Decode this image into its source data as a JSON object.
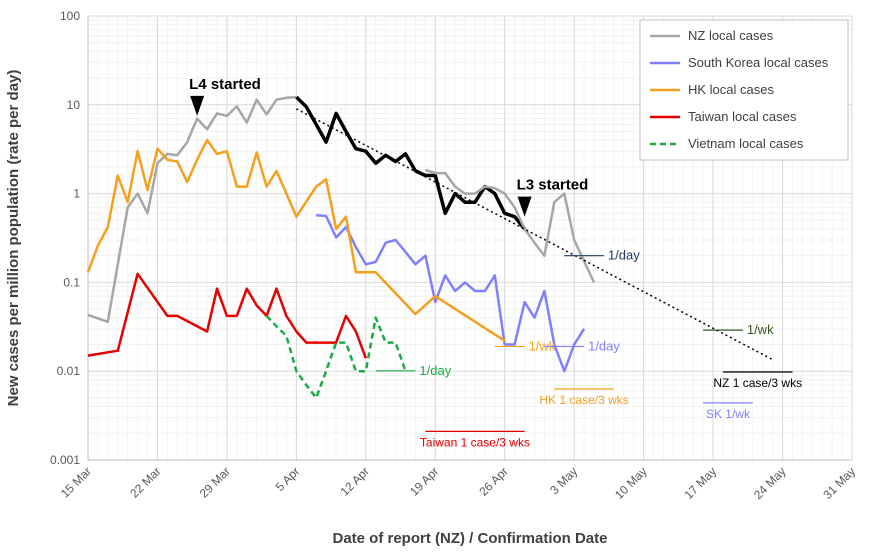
{
  "chart_data": {
    "type": "line",
    "xlabel": "Date of report (NZ) / Confirmation Date",
    "ylabel": "New cases per million population (rate per day)",
    "y_scale": "log",
    "ylim": [
      0.001,
      100
    ],
    "y_ticks": [
      "0.001",
      "0.01",
      "0.1",
      "1",
      "10",
      "100"
    ],
    "xlim": [
      "2020-03-15",
      "2020-05-31"
    ],
    "x_ticks": [
      "15 Mar",
      "22 Mar",
      "29 Mar",
      "5 Apr",
      "12 Apr",
      "19 Apr",
      "26 Apr",
      "3 May",
      "10 May",
      "17 May",
      "24 May",
      "31 May"
    ],
    "grid": true,
    "legend_position": "top-right",
    "series": [
      {
        "name": "NZ local cases",
        "color": "#a6a6a6",
        "style": "solid",
        "x": [
          "2020-03-15",
          "2020-03-17",
          "2020-03-19",
          "2020-03-20",
          "2020-03-21",
          "2020-03-22",
          "2020-03-23",
          "2020-03-24",
          "2020-03-25",
          "2020-03-26",
          "2020-03-27",
          "2020-03-28",
          "2020-03-29",
          "2020-03-30",
          "2020-03-31",
          "2020-04-01",
          "2020-04-02",
          "2020-04-03",
          "2020-04-04",
          "2020-04-05"
        ],
        "y": [
          0.043,
          0.036,
          0.7,
          1.0,
          0.6,
          2.2,
          2.8,
          2.7,
          3.8,
          7.0,
          5.3,
          8.0,
          7.5,
          9.6,
          6.3,
          11.4,
          7.8,
          11.4,
          12.0,
          12.2
        ]
      },
      {
        "name": "NZ local cases (black)",
        "color": "#000000",
        "style": "solid",
        "x": [
          "2020-04-05",
          "2020-04-06",
          "2020-04-07",
          "2020-04-08",
          "2020-04-09",
          "2020-04-10",
          "2020-04-11",
          "2020-04-12",
          "2020-04-13",
          "2020-04-14",
          "2020-04-15",
          "2020-04-16",
          "2020-04-17",
          "2020-04-18",
          "2020-04-19",
          "2020-04-20",
          "2020-04-21",
          "2020-04-22",
          "2020-04-23",
          "2020-04-24",
          "2020-04-25",
          "2020-04-26",
          "2020-04-27",
          "2020-04-28"
        ],
        "y": [
          12.2,
          9.5,
          6.0,
          3.8,
          8.0,
          5.0,
          3.2,
          3.0,
          2.2,
          2.7,
          2.3,
          2.8,
          1.8,
          1.6,
          1.6,
          0.6,
          1.0,
          0.8,
          0.8,
          1.2,
          1.0,
          0.6,
          0.55,
          0.4
        ]
      },
      {
        "name": "NZ local cases (grey tail)",
        "color": "#a6a6a6",
        "style": "solid",
        "x": [
          "2020-04-18",
          "2020-04-19",
          "2020-04-20",
          "2020-04-21",
          "2020-04-22",
          "2020-04-23",
          "2020-04-24",
          "2020-04-25",
          "2020-04-26",
          "2020-04-27",
          "2020-04-28",
          "2020-04-29",
          "2020-04-30",
          "2020-05-01",
          "2020-05-02",
          "2020-05-03",
          "2020-05-05"
        ],
        "y": [
          1.85,
          1.7,
          1.7,
          1.2,
          1.0,
          1.0,
          1.2,
          1.15,
          1.0,
          0.7,
          0.4,
          0.28,
          0.2,
          0.8,
          1.0,
          0.3,
          0.1
        ]
      },
      {
        "name": "South Korea local cases",
        "color": "#8080ff",
        "style": "solid",
        "x": [
          "2020-04-07",
          "2020-04-08",
          "2020-04-09",
          "2020-04-10",
          "2020-04-11",
          "2020-04-12",
          "2020-04-13",
          "2020-04-14",
          "2020-04-15",
          "2020-04-16",
          "2020-04-17",
          "2020-04-18",
          "2020-04-19",
          "2020-04-20",
          "2020-04-21",
          "2020-04-22",
          "2020-04-23",
          "2020-04-24",
          "2020-04-25",
          "2020-04-26",
          "2020-04-27",
          "2020-04-28",
          "2020-04-29",
          "2020-04-30",
          "2020-05-01",
          "2020-05-02",
          "2020-05-03",
          "2020-05-04"
        ],
        "y": [
          0.57,
          0.56,
          0.32,
          0.42,
          0.25,
          0.16,
          0.17,
          0.28,
          0.3,
          0.22,
          0.16,
          0.2,
          0.06,
          0.12,
          0.08,
          0.1,
          0.08,
          0.08,
          0.12,
          0.02,
          0.02,
          0.06,
          0.04,
          0.08,
          0.02,
          0.01,
          0.02,
          0.03
        ]
      },
      {
        "name": "HK local cases",
        "color": "#f59f1e",
        "style": "solid",
        "x": [
          "2020-03-15",
          "2020-03-16",
          "2020-03-17",
          "2020-03-18",
          "2020-03-19",
          "2020-03-20",
          "2020-03-21",
          "2020-03-22",
          "2020-03-23",
          "2020-03-24",
          "2020-03-25",
          "2020-03-26",
          "2020-03-27",
          "2020-03-28",
          "2020-03-29",
          "2020-03-30",
          "2020-03-31",
          "2020-04-01",
          "2020-04-02",
          "2020-04-03",
          "2020-04-04",
          "2020-04-05",
          "2020-04-07",
          "2020-04-08",
          "2020-04-09",
          "2020-04-10",
          "2020-04-11",
          "2020-04-12",
          "2020-04-13",
          "2020-04-17",
          "2020-04-19",
          "2020-04-26"
        ],
        "y": [
          0.13,
          0.26,
          0.42,
          1.6,
          0.8,
          3.0,
          1.1,
          3.2,
          2.4,
          2.3,
          1.35,
          2.4,
          4.0,
          2.8,
          3.0,
          1.2,
          1.2,
          2.9,
          1.2,
          1.8,
          1.0,
          0.55,
          1.2,
          1.45,
          0.4,
          0.55,
          0.13,
          0.13,
          0.13,
          0.044,
          0.07,
          0.022
        ]
      },
      {
        "name": "Taiwan local cases",
        "color": "#e60000",
        "style": "solid",
        "x": [
          "2020-03-15",
          "2020-03-18",
          "2020-03-20",
          "2020-03-23",
          "2020-03-24",
          "2020-03-27",
          "2020-03-28",
          "2020-03-29",
          "2020-03-30",
          "2020-03-31",
          "2020-04-01",
          "2020-04-02",
          "2020-04-03",
          "2020-04-04",
          "2020-04-05",
          "2020-04-06",
          "2020-04-07",
          "2020-04-09",
          "2020-04-10",
          "2020-04-11",
          "2020-04-12"
        ],
        "y": [
          0.015,
          0.017,
          0.125,
          0.042,
          0.042,
          0.028,
          0.085,
          0.042,
          0.042,
          0.085,
          0.055,
          0.042,
          0.085,
          0.042,
          0.028,
          0.021,
          0.021,
          0.021,
          0.042,
          0.028,
          0.014
        ]
      },
      {
        "name": "Vietnam local cases",
        "color": "#1aab45",
        "style": "dashed",
        "x": [
          "2020-04-02",
          "2020-04-03",
          "2020-04-04",
          "2020-04-05",
          "2020-04-06",
          "2020-04-07",
          "2020-04-08",
          "2020-04-09",
          "2020-04-10",
          "2020-04-11",
          "2020-04-12",
          "2020-04-13",
          "2020-04-14",
          "2020-04-15",
          "2020-04-16"
        ],
        "y": [
          0.042,
          0.032,
          0.025,
          0.01,
          0.007,
          0.005,
          0.01,
          0.021,
          0.021,
          0.01,
          0.01,
          0.04,
          0.021,
          0.021,
          0.01
        ]
      }
    ],
    "trendline": {
      "color": "#000000",
      "style": "dotted",
      "x": [
        "2020-04-05",
        "2020-05-23"
      ],
      "y": [
        9.0,
        0.0135
      ]
    },
    "annotations": [
      {
        "text": "L4 started",
        "x": "2020-03-26",
        "y": 7.5,
        "color": "#000000"
      },
      {
        "text": "L3 started",
        "x": "2020-04-28",
        "y": 0.55,
        "color": "#000000"
      }
    ],
    "reference_lines": [
      {
        "label": "1/day",
        "color": "#1f3864",
        "x": [
          "2020-05-02",
          "2020-05-06"
        ],
        "y": 0.2
      },
      {
        "label": "1/wk",
        "color": "#375623",
        "x": [
          "2020-05-16",
          "2020-05-20"
        ],
        "y": 0.029
      },
      {
        "label": "NZ 1 case/3 wks",
        "color": "#000000",
        "x": [
          "2020-05-18",
          "2020-05-25"
        ],
        "y": 0.0098
      },
      {
        "label": "1/wk",
        "color": "#f59f1e",
        "x": [
          "2020-04-25",
          "2020-04-28"
        ],
        "y": 0.019
      },
      {
        "label": "1/day",
        "color": "#8080ff",
        "x": [
          "2020-04-30",
          "2020-05-04"
        ],
        "y": 0.019
      },
      {
        "label": "1/day",
        "color": "#1aab45",
        "x": [
          "2020-04-13",
          "2020-04-17"
        ],
        "y": 0.0101
      },
      {
        "label": "HK 1 case/3 wks",
        "color": "#f59f1e",
        "x": [
          "2020-05-01",
          "2020-05-07"
        ],
        "y": 0.0063
      },
      {
        "label": "SK 1/wk",
        "color": "#8080ff",
        "x": [
          "2020-05-16",
          "2020-05-21"
        ],
        "y": 0.0044
      },
      {
        "label": "Taiwan 1 case/3 wks",
        "color": "#e60000",
        "x": [
          "2020-04-18",
          "2020-04-28"
        ],
        "y": 0.0021
      }
    ],
    "legend": [
      "NZ local cases",
      "South Korea local cases",
      "HK local cases",
      "Taiwan local cases",
      "Vietnam local cases"
    ]
  }
}
